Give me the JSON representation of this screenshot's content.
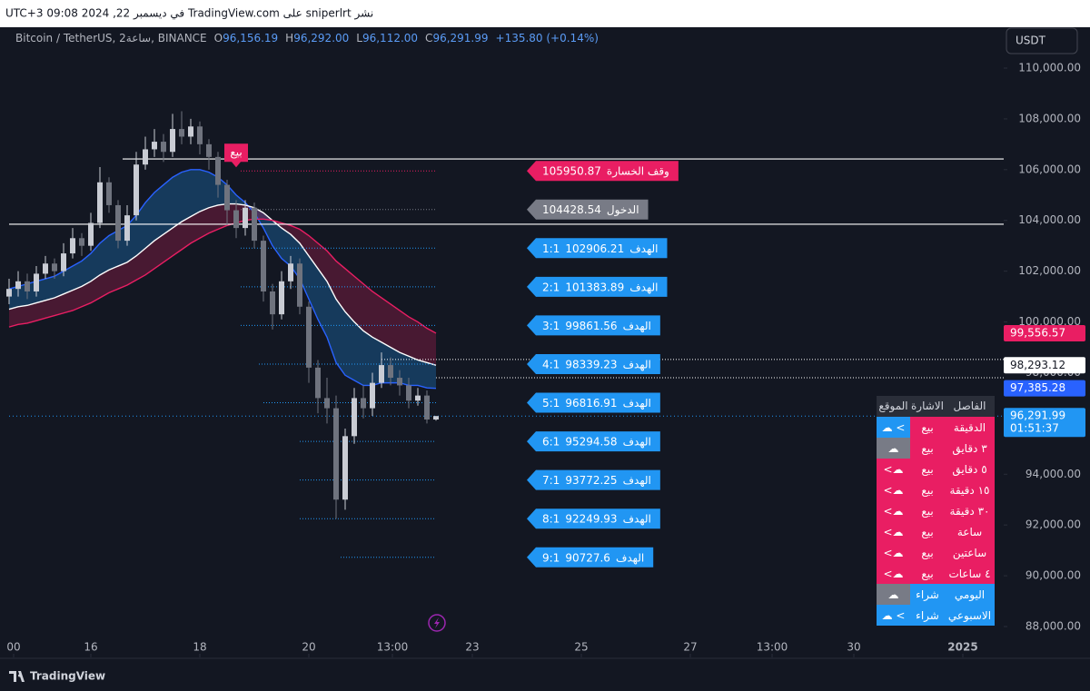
{
  "header": {
    "published": "نشر sniperlrt على TradingView.com في ديسمبر 22, 2024 09:08 UTC+3",
    "symbol": "Bitcoin / TetherUS, 2ساعة, BINANCE",
    "ohlc": [
      {
        "key": "O",
        "value": "96,156.19"
      },
      {
        "key": "H",
        "value": "96,292.00"
      },
      {
        "key": "L",
        "value": "96,112.00"
      },
      {
        "key": "C",
        "value": "96,291.99"
      }
    ],
    "change": "+135.80 (+0.14%)",
    "currency": "USDT",
    "brand": "TradingView"
  },
  "chart_data": {
    "type": "candlestick",
    "up_color": "#c9ccd4",
    "down_color": "#6f737e",
    "xlim": [
      -0.5,
      109.5
    ],
    "ylim": [
      88000,
      110000
    ],
    "xticks": [
      {
        "value": 0.5,
        "label": "00"
      },
      {
        "value": 9,
        "label": "16"
      },
      {
        "value": 21,
        "label": "18"
      },
      {
        "value": 33,
        "label": "20"
      },
      {
        "value": 42.2,
        "label": "13:00"
      },
      {
        "value": 51,
        "label": "23"
      },
      {
        "value": 63,
        "label": "25"
      },
      {
        "value": 75,
        "label": "27"
      },
      {
        "value": 84,
        "label": "13:00"
      },
      {
        "value": 93,
        "label": "30"
      },
      {
        "value": 105,
        "label": "2025"
      }
    ],
    "yticks": [
      {
        "value": 88000,
        "label": "88,000.00"
      },
      {
        "value": 90000,
        "label": "90,000.00"
      },
      {
        "value": 92000,
        "label": "92,000.00"
      },
      {
        "value": 94000,
        "label": "94,000.00"
      },
      {
        "value": 96000,
        "label": "96,000.00"
      },
      {
        "value": 98000,
        "label": "98,000.00"
      },
      {
        "value": 100000,
        "label": "100,000.00"
      },
      {
        "value": 102000,
        "label": "102,000.00"
      },
      {
        "value": 104000,
        "label": "104,000.00"
      },
      {
        "value": 106000,
        "label": "106,000.00"
      },
      {
        "value": 108000,
        "label": "108,000.00"
      },
      {
        "value": 110000,
        "label": "110,000.00"
      }
    ],
    "candles": {
      "x": [
        0,
        1,
        2,
        3,
        4,
        5,
        6,
        7,
        8,
        9,
        10,
        11,
        12,
        13,
        14,
        15,
        16,
        17,
        18,
        19,
        20,
        21,
        22,
        23,
        24,
        25,
        26,
        27,
        28,
        29,
        30,
        31,
        32,
        33,
        34,
        35,
        36,
        37,
        38,
        39,
        40,
        41,
        42,
        43,
        44,
        45,
        46,
        47
      ],
      "open": [
        101000,
        101300,
        101600,
        101200,
        101900,
        102300,
        102000,
        102700,
        103300,
        103000,
        103900,
        105500,
        104600,
        103200,
        104200,
        106200,
        106800,
        107100,
        106700,
        107600,
        107300,
        107700,
        107000,
        106500,
        105400,
        104400,
        103700,
        104500,
        103200,
        101200,
        100300,
        101600,
        102300,
        100600,
        98200,
        97000,
        96600,
        93000,
        95500,
        97000,
        96600,
        97600,
        98300,
        97800,
        97500,
        96900,
        97100,
        96156.19
      ],
      "high": [
        101700,
        102000,
        101900,
        102200,
        102600,
        102500,
        103100,
        103700,
        103500,
        104300,
        106100,
        105700,
        104800,
        104600,
        106700,
        107300,
        107600,
        107400,
        108200,
        108300,
        108000,
        107900,
        107200,
        106700,
        105600,
        104800,
        104800,
        104700,
        103400,
        101500,
        102000,
        102600,
        102500,
        100800,
        98500,
        97800,
        97100,
        95800,
        97400,
        97500,
        98000,
        98800,
        98600,
        98100,
        97800,
        97400,
        97300,
        96292
      ],
      "low": [
        100700,
        101000,
        100900,
        101000,
        101700,
        101700,
        101800,
        102500,
        102600,
        102800,
        103700,
        104300,
        102900,
        103000,
        104000,
        106000,
        106500,
        106300,
        106500,
        107000,
        107000,
        106600,
        106000,
        104900,
        103800,
        103300,
        103400,
        102900,
        100800,
        99700,
        100100,
        101300,
        100300,
        97600,
        96400,
        96000,
        92250,
        92600,
        95200,
        96200,
        96300,
        97400,
        97500,
        97100,
        96600,
        96700,
        96000,
        96112
      ],
      "close": [
        101300,
        101600,
        101200,
        101900,
        102300,
        102000,
        102700,
        103300,
        103000,
        103900,
        105500,
        104600,
        103200,
        104200,
        106200,
        106800,
        107100,
        106700,
        107600,
        107300,
        107700,
        107000,
        106500,
        105400,
        104400,
        103700,
        104500,
        103200,
        101200,
        100300,
        101600,
        102300,
        100600,
        98200,
        97000,
        96600,
        93000,
        95500,
        97000,
        96600,
        97600,
        98300,
        97800,
        97500,
        96900,
        97100,
        96156.19,
        96291.99
      ],
      "close_label": "96,291.99",
      "countdown": "01:51:37",
      "price_color": "#2196f3"
    },
    "series": [
      {
        "color": "#2962ff",
        "fill": "rgba(33,150,243,0.28)",
        "last_label": "97,385.28",
        "values": [
          101300,
          101400,
          101500,
          101600,
          101700,
          101800,
          102000,
          102200,
          102400,
          102700,
          103100,
          103400,
          103600,
          103800,
          104200,
          104700,
          105100,
          105400,
          105700,
          105900,
          106000,
          106000,
          105900,
          105700,
          105400,
          105000,
          104700,
          104300,
          103700,
          103000,
          102500,
          102200,
          101700,
          100900,
          100100,
          99400,
          98400,
          97900,
          97700,
          97500,
          97500,
          97600,
          97600,
          97600,
          97500,
          97500,
          97400,
          97385.28
        ]
      },
      {
        "color": "#ffffff",
        "fill": "rgba(233,30,99,0.25)",
        "last_label": "98,293.12",
        "values": [
          100500,
          100600,
          100650,
          100750,
          100850,
          100950,
          101100,
          101250,
          101400,
          101600,
          101850,
          102050,
          102200,
          102350,
          102600,
          102900,
          103200,
          103450,
          103700,
          103950,
          104150,
          104350,
          104500,
          104600,
          104650,
          104650,
          104600,
          104500,
          104300,
          104000,
          103700,
          103450,
          103100,
          102600,
          102100,
          101600,
          100900,
          100400,
          100000,
          99650,
          99400,
          99200,
          99000,
          98800,
          98650,
          98500,
          98400,
          98293.12
        ]
      },
      {
        "color": "#e91e63",
        "last_label": "99,556.57",
        "values": [
          99800,
          99900,
          99950,
          100050,
          100150,
          100250,
          100350,
          100450,
          100600,
          100750,
          100950,
          101150,
          101300,
          101450,
          101650,
          101850,
          102100,
          102350,
          102600,
          102850,
          103100,
          103300,
          103500,
          103650,
          103800,
          103900,
          104000,
          104050,
          104050,
          104000,
          103900,
          103800,
          103650,
          103400,
          103100,
          102800,
          102400,
          102100,
          101800,
          101500,
          101200,
          100950,
          100700,
          100450,
          100200,
          100000,
          99750,
          99556.57
        ]
      }
    ],
    "hlines": [
      {
        "value": 106420,
        "style": "solid"
      },
      {
        "value": 103850,
        "style": "solid"
      },
      {
        "value": 98520,
        "style": "dotted"
      },
      {
        "value": 97800,
        "style": "dotted"
      }
    ],
    "signal": {
      "label": "بيع",
      "x": 25
    },
    "levels": [
      {
        "name": "وقف الخسارة",
        "value": 105950.87,
        "color": "#e91e63"
      },
      {
        "name": "الدخول",
        "value": 104428.54,
        "color": "#787b86"
      },
      {
        "name": "الهدف",
        "ratio": "1:1",
        "value": 102906.21,
        "color": "#2196f3"
      },
      {
        "name": "الهدف",
        "ratio": "2:1",
        "value": 101383.89,
        "color": "#2196f3"
      },
      {
        "name": "الهدف",
        "ratio": "3:1",
        "value": 99861.56,
        "color": "#2196f3"
      },
      {
        "name": "الهدف",
        "ratio": "4:1",
        "value": 98339.23,
        "color": "#2196f3"
      },
      {
        "name": "الهدف",
        "ratio": "5:1",
        "value": 96816.91,
        "color": "#2196f3"
      },
      {
        "name": "الهدف",
        "ratio": "6:1",
        "value": 95294.58,
        "color": "#2196f3"
      },
      {
        "name": "الهدف",
        "ratio": "7:1",
        "value": 93772.25,
        "color": "#2196f3"
      },
      {
        "name": "الهدف",
        "ratio": "8:1",
        "value": 92249.93,
        "color": "#2196f3"
      },
      {
        "name": "الهدف",
        "ratio": "9:1",
        "value": 90727.6,
        "color": "#2196f3"
      }
    ]
  },
  "table": {
    "header": [
      "الفاصل",
      "الاشارة",
      "الموقع"
    ],
    "rows": [
      {
        "interval": "الدقيقة",
        "signal": "بيع",
        "position": "☁ <",
        "color": "#e91e63",
        "position_color": "#2196f3"
      },
      {
        "interval": "٣ دقايق",
        "signal": "بيع",
        "position": "☁",
        "color": "#e91e63",
        "position_color": "#787b86"
      },
      {
        "interval": "٥ دقايق",
        "signal": "بيع",
        "position": "<☁",
        "color": "#e91e63",
        "position_color": "#e91e63"
      },
      {
        "interval": "١٥ دقيقة",
        "signal": "بيع",
        "position": "<☁",
        "color": "#e91e63",
        "position_color": "#e91e63"
      },
      {
        "interval": "٣٠ دقيقة",
        "signal": "بيع",
        "position": "<☁",
        "color": "#e91e63",
        "position_color": "#e91e63"
      },
      {
        "interval": "ساعة",
        "signal": "بيع",
        "position": "<☁",
        "color": "#e91e63",
        "position_color": "#e91e63"
      },
      {
        "interval": "ساعتين",
        "signal": "بيع",
        "position": "<☁",
        "color": "#e91e63",
        "position_color": "#e91e63"
      },
      {
        "interval": "٤ ساعات",
        "signal": "بيع",
        "position": "<☁",
        "color": "#e91e63",
        "position_color": "#e91e63"
      },
      {
        "interval": "اليومي",
        "signal": "شراء",
        "position": "☁",
        "color": "#2196f3",
        "position_color": "#787b86"
      },
      {
        "interval": "الاسبوعي",
        "signal": "شراء",
        "position": "☁ <",
        "color": "#2196f3",
        "position_color": "#2196f3"
      }
    ]
  }
}
